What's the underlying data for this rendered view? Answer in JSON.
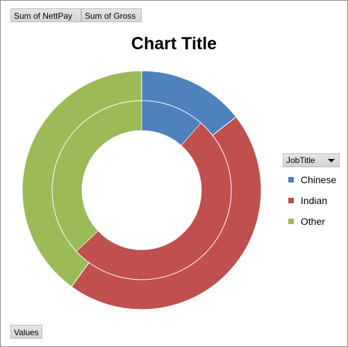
{
  "field_buttons": {
    "nettpay": "Sum of NettPay",
    "gross": "Sum of Gross",
    "values": "Values"
  },
  "legend_filter": {
    "label": "JobTitle"
  },
  "colors": {
    "Chinese": "#4f81bd",
    "Indian": "#c0504d",
    "Other": "#9bbb59"
  },
  "chart_data": {
    "type": "doughnut",
    "title": "Chart Title",
    "categories": [
      "Chinese",
      "Indian",
      "Other"
    ],
    "series": [
      {
        "name": "Sum of NettPay",
        "values": [
          11.5,
          51.5,
          37.0
        ]
      },
      {
        "name": "Sum of Gross",
        "values": [
          14.5,
          45.5,
          40.0
        ]
      }
    ],
    "inner_ring": "Sum of NettPay",
    "outer_ring": "Sum of Gross",
    "legend_position": "right",
    "unit": "percent of total"
  }
}
